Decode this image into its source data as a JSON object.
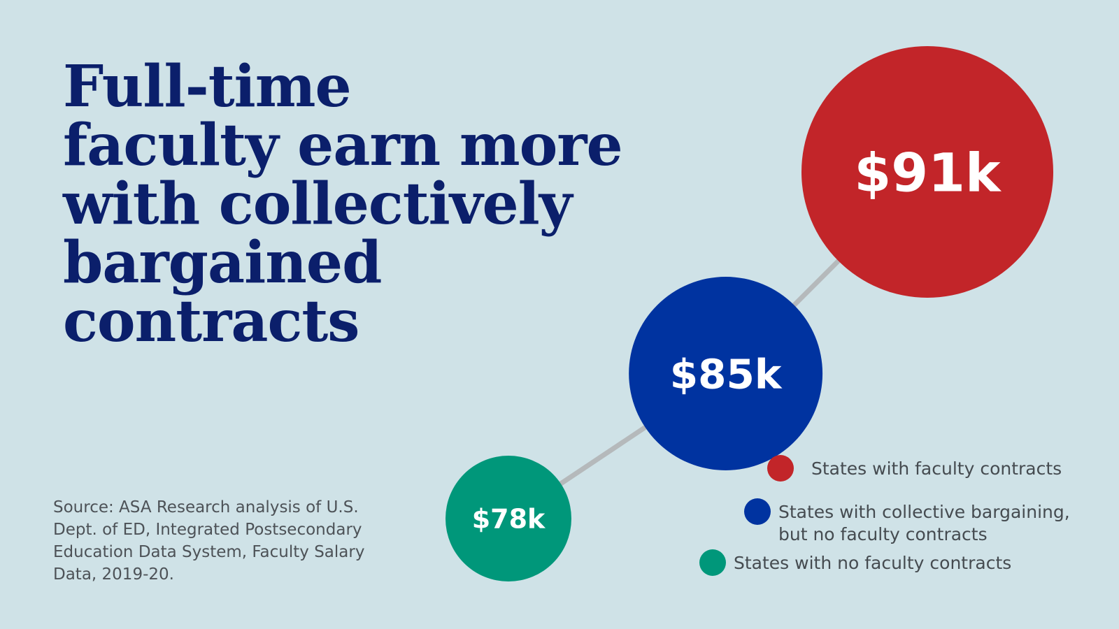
{
  "title": {
    "lines": [
      "Full-time",
      "faculty earn more",
      "with collectively",
      "bargained",
      "contracts"
    ]
  },
  "source": {
    "lines": [
      "Source: ASA Research analysis of U.S.",
      "Dept. of ED, Integrated Postsecondary",
      "Education Data System, Faculty Salary",
      "Data, 2019-20."
    ]
  },
  "chart_data": {
    "type": "bubble",
    "unit": "$ thousands",
    "series": [
      {
        "name": "States with faculty contracts",
        "value": 91,
        "label": "$91k",
        "color": "#c22529"
      },
      {
        "name": "States with collective bargaining, but no faculty contracts",
        "legend_lines": [
          "States with collective bargaining,",
          "but no faculty contracts"
        ],
        "value": 85,
        "label": "$85k",
        "color": "#0033a0"
      },
      {
        "name": "States with no faculty contracts",
        "value": 78,
        "label": "$78k",
        "color": "#00977a"
      }
    ],
    "connector_color": "#b5b9bb"
  }
}
